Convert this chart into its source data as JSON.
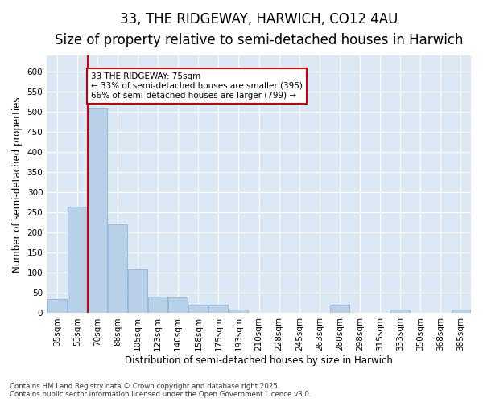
{
  "title_line1": "33, THE RIDGEWAY, HARWICH, CO12 4AU",
  "title_line2": "Size of property relative to semi-detached houses in Harwich",
  "xlabel": "Distribution of semi-detached houses by size in Harwich",
  "ylabel": "Number of semi-detached properties",
  "categories": [
    "35sqm",
    "53sqm",
    "70sqm",
    "88sqm",
    "105sqm",
    "123sqm",
    "140sqm",
    "158sqm",
    "175sqm",
    "193sqm",
    "210sqm",
    "228sqm",
    "245sqm",
    "263sqm",
    "280sqm",
    "298sqm",
    "315sqm",
    "333sqm",
    "350sqm",
    "368sqm",
    "385sqm"
  ],
  "values": [
    35,
    265,
    510,
    220,
    108,
    40,
    38,
    20,
    20,
    8,
    0,
    0,
    0,
    0,
    20,
    0,
    0,
    8,
    0,
    0,
    8
  ],
  "bar_color": "#b8d0e8",
  "bar_edge_color": "#7aafd4",
  "property_size_label": "33 THE RIDGEWAY: 75sqm",
  "pct_smaller": 33,
  "pct_smaller_count": 395,
  "pct_larger": 66,
  "pct_larger_count": 799,
  "vline_color": "#cc0000",
  "annotation_box_color": "#cc0000",
  "ylim": [
    0,
    640
  ],
  "yticks": [
    0,
    50,
    100,
    150,
    200,
    250,
    300,
    350,
    400,
    450,
    500,
    550,
    600
  ],
  "background_color": "#dce9f5",
  "footer_text": "Contains HM Land Registry data © Crown copyright and database right 2025.\nContains public sector information licensed under the Open Government Licence v3.0.",
  "title_fontsize": 12,
  "subtitle_fontsize": 10,
  "axis_label_fontsize": 8.5,
  "tick_fontsize": 7.5
}
